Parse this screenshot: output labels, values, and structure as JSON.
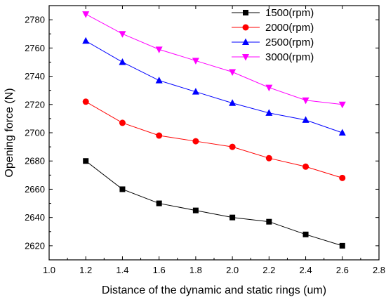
{
  "chart_data": {
    "type": "line",
    "title": "",
    "xlabel": "Distance of the dynamic and static rings (um)",
    "ylabel": "Opening force (N)",
    "xlim": [
      1.0,
      2.8
    ],
    "ylim": [
      2610,
      2790
    ],
    "x_ticks": [
      "1.0",
      "1.2",
      "1.4",
      "1.6",
      "1.8",
      "2.0",
      "2.2",
      "2.4",
      "2.6",
      "2.8"
    ],
    "y_ticks": [
      "2620",
      "2640",
      "2660",
      "2680",
      "2700",
      "2720",
      "2740",
      "2760",
      "2780"
    ],
    "grid": false,
    "legend_position": "top-right",
    "x": [
      1.2,
      1.4,
      1.6,
      1.8,
      2.0,
      2.2,
      2.4,
      2.6
    ],
    "series": [
      {
        "name": "1500(rpm)",
        "color": "#000000",
        "marker": "square",
        "values": [
          2680,
          2660,
          2650,
          2645,
          2640,
          2637,
          2628,
          2620
        ]
      },
      {
        "name": "2000(rpm)",
        "color": "#ff0000",
        "marker": "circle",
        "values": [
          2722,
          2707,
          2698,
          2694,
          2690,
          2682,
          2676,
          2668
        ]
      },
      {
        "name": "2500(rpm)",
        "color": "#0000ff",
        "marker": "triangle-up",
        "values": [
          2765,
          2750,
          2737,
          2729,
          2721,
          2714,
          2709,
          2700
        ]
      },
      {
        "name": "3000(rpm)",
        "color": "#ff00ff",
        "marker": "triangle-down",
        "values": [
          2784,
          2770,
          2759,
          2751,
          2743,
          2732,
          2723,
          2720
        ]
      }
    ]
  }
}
